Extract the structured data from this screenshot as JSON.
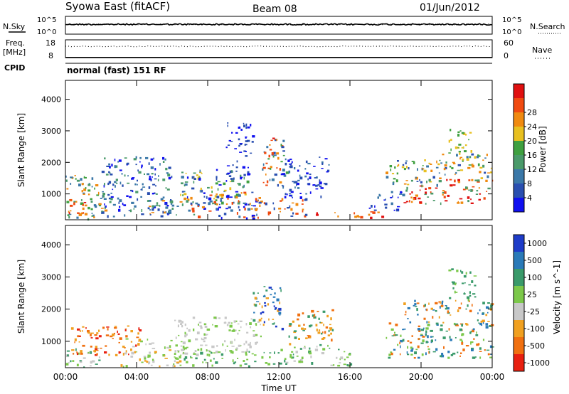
{
  "header": {
    "title": "Syowa East (fitACF)",
    "beam": "Beam 08",
    "date": "01/Jun/2012"
  },
  "side_labels": {
    "nsky": "N.Sky",
    "freq_top": "Freq.",
    "freq_unit": "[MHz]",
    "cpid": "CPID",
    "nsearch": "N.Search",
    "nave": "Nave"
  },
  "mode_text": "normal (fast) 151 RF",
  "xaxis": {
    "label": "Time UT",
    "ticks": [
      "00:00",
      "04:00",
      "08:00",
      "12:00",
      "16:00",
      "20:00",
      "00:00"
    ]
  },
  "chart_data": [
    {
      "type": "line",
      "name": "noise-panel",
      "left_ticks": [
        "10^5",
        "10^0"
      ],
      "right_ticks": [
        "10^5",
        "10^0"
      ],
      "series": [
        {
          "label": "N.Sky",
          "style": "solid",
          "level_fraction": 0.45
        },
        {
          "label": "N.Search",
          "style": "dotted",
          "level_fraction": 0.55
        }
      ]
    },
    {
      "type": "line",
      "name": "freq-nave-panel",
      "left_ticks": [
        "18",
        "8"
      ],
      "right_ticks": [
        "60",
        "0"
      ],
      "series": [
        {
          "label": "Freq.",
          "style": "solid",
          "value_mhz": 10.5
        },
        {
          "label": "Nave",
          "style": "dotted",
          "value": 38
        }
      ]
    },
    {
      "type": "heatmap",
      "name": "power-panel",
      "ylabel": "Slant Range [km]",
      "yticks": [
        1000,
        2000,
        3000,
        4000
      ],
      "ylim": [
        180,
        4600
      ],
      "xlim_hours": [
        0,
        24
      ],
      "colorbar": {
        "label": "Power [dB]",
        "ticks": [
          "4",
          "8",
          "12",
          "16",
          "20",
          "24",
          "28"
        ],
        "colors": [
          "#1010f0",
          "#2a4fb0",
          "#3b78a8",
          "#4a9a6a",
          "#3fa040",
          "#e8c020",
          "#f08a10",
          "#f04a10",
          "#e01010"
        ]
      },
      "regions": [
        {
          "t0": 0.0,
          "t1": 2.2,
          "r0": 200,
          "r1": 1600,
          "mix": [
            2,
            3,
            4,
            6
          ]
        },
        {
          "t0": 0.0,
          "t1": 1.2,
          "r0": 350,
          "r1": 900,
          "mix": [
            6,
            7,
            8
          ]
        },
        {
          "t0": 2.0,
          "t1": 6.0,
          "r0": 300,
          "r1": 2200,
          "mix": [
            0,
            1,
            2,
            3
          ]
        },
        {
          "t0": 4.5,
          "t1": 7.2,
          "r0": 300,
          "r1": 900,
          "mix": [
            1,
            2,
            3,
            6
          ]
        },
        {
          "t0": 6.2,
          "t1": 10.2,
          "r0": 700,
          "r1": 1800,
          "mix": [
            0,
            1,
            2,
            3,
            4,
            5
          ]
        },
        {
          "t0": 7.0,
          "t1": 11.0,
          "r0": 250,
          "r1": 1100,
          "mix": [
            0,
            1,
            2,
            6,
            7
          ]
        },
        {
          "t0": 9.0,
          "t1": 10.5,
          "r0": 1500,
          "r1": 3300,
          "mix": [
            0,
            1
          ]
        },
        {
          "t0": 11.0,
          "t1": 12.4,
          "r0": 1200,
          "r1": 2800,
          "mix": [
            1,
            2,
            4,
            6,
            7
          ]
        },
        {
          "t0": 11.3,
          "t1": 11.9,
          "r0": 2300,
          "r1": 2800,
          "mix": [
            6,
            7,
            8
          ]
        },
        {
          "t0": 10.5,
          "t1": 13.5,
          "r0": 300,
          "r1": 900,
          "mix": [
            6,
            7,
            1
          ]
        },
        {
          "t0": 12.0,
          "t1": 14.8,
          "r0": 900,
          "r1": 2200,
          "mix": [
            0,
            1,
            2
          ]
        },
        {
          "t0": 14.0,
          "t1": 17.8,
          "r0": 250,
          "r1": 450,
          "mix": [
            6,
            7,
            8
          ]
        },
        {
          "t0": 17.0,
          "t1": 19.0,
          "r0": 500,
          "r1": 1100,
          "mix": [
            0,
            1,
            2
          ]
        },
        {
          "t0": 18.0,
          "t1": 21.0,
          "r0": 1300,
          "r1": 2100,
          "mix": [
            1,
            2,
            4,
            5,
            6
          ]
        },
        {
          "t0": 19.0,
          "t1": 24.0,
          "r0": 700,
          "r1": 1500,
          "mix": [
            6,
            7,
            8,
            3
          ]
        },
        {
          "t0": 21.0,
          "t1": 24.0,
          "r0": 1500,
          "r1": 2300,
          "mix": [
            1,
            2,
            3,
            4,
            5,
            6
          ]
        },
        {
          "t0": 21.5,
          "t1": 22.8,
          "r0": 2300,
          "r1": 3200,
          "mix": [
            4,
            5
          ]
        }
      ]
    },
    {
      "type": "heatmap",
      "name": "velocity-panel",
      "ylabel": "Slant Range [km]",
      "yticks": [
        1000,
        2000,
        3000,
        4000
      ],
      "ylim": [
        180,
        4600
      ],
      "xlim_hours": [
        0,
        24
      ],
      "colorbar": {
        "label": "Velocity [m s^-1]",
        "ticks": [
          "1000",
          "500",
          "100",
          "25",
          "-25",
          "-100",
          "-500",
          "-1000"
        ],
        "colors": [
          "#1e3cc8",
          "#2a7ab8",
          "#3a9a6a",
          "#7cc84a",
          "#c8c8c8",
          "#f0a020",
          "#f07010",
          "#e82010"
        ]
      },
      "regions": [
        {
          "t0": 0.0,
          "t1": 2.0,
          "r0": 200,
          "r1": 800,
          "mix": [
            2,
            3,
            4
          ]
        },
        {
          "t0": 0.3,
          "t1": 4.2,
          "r0": 600,
          "r1": 1500,
          "mix": [
            5,
            6,
            7
          ]
        },
        {
          "t0": 3.0,
          "t1": 6.5,
          "r0": 200,
          "r1": 1100,
          "mix": [
            3,
            4,
            5
          ]
        },
        {
          "t0": 6.0,
          "t1": 11.0,
          "r0": 600,
          "r1": 1800,
          "mix": [
            4,
            4,
            3
          ]
        },
        {
          "t0": 6.5,
          "t1": 12.0,
          "r0": 250,
          "r1": 700,
          "mix": [
            3,
            2
          ]
        },
        {
          "t0": 10.5,
          "t1": 12.2,
          "r0": 1400,
          "r1": 2800,
          "mix": [
            0,
            1,
            2,
            5
          ]
        },
        {
          "t0": 12.0,
          "t1": 16.0,
          "r0": 250,
          "r1": 900,
          "mix": [
            3,
            2,
            4
          ]
        },
        {
          "t0": 12.5,
          "t1": 15.0,
          "r0": 900,
          "r1": 2000,
          "mix": [
            2,
            5,
            6
          ]
        },
        {
          "t0": 18.0,
          "t1": 24.0,
          "r0": 500,
          "r1": 1600,
          "mix": [
            1,
            2,
            3,
            6
          ]
        },
        {
          "t0": 19.0,
          "t1": 24.0,
          "r0": 1500,
          "r1": 2300,
          "mix": [
            1,
            2,
            5,
            6
          ]
        },
        {
          "t0": 21.5,
          "t1": 23.0,
          "r0": 2300,
          "r1": 3300,
          "mix": [
            2,
            3
          ]
        }
      ]
    }
  ]
}
